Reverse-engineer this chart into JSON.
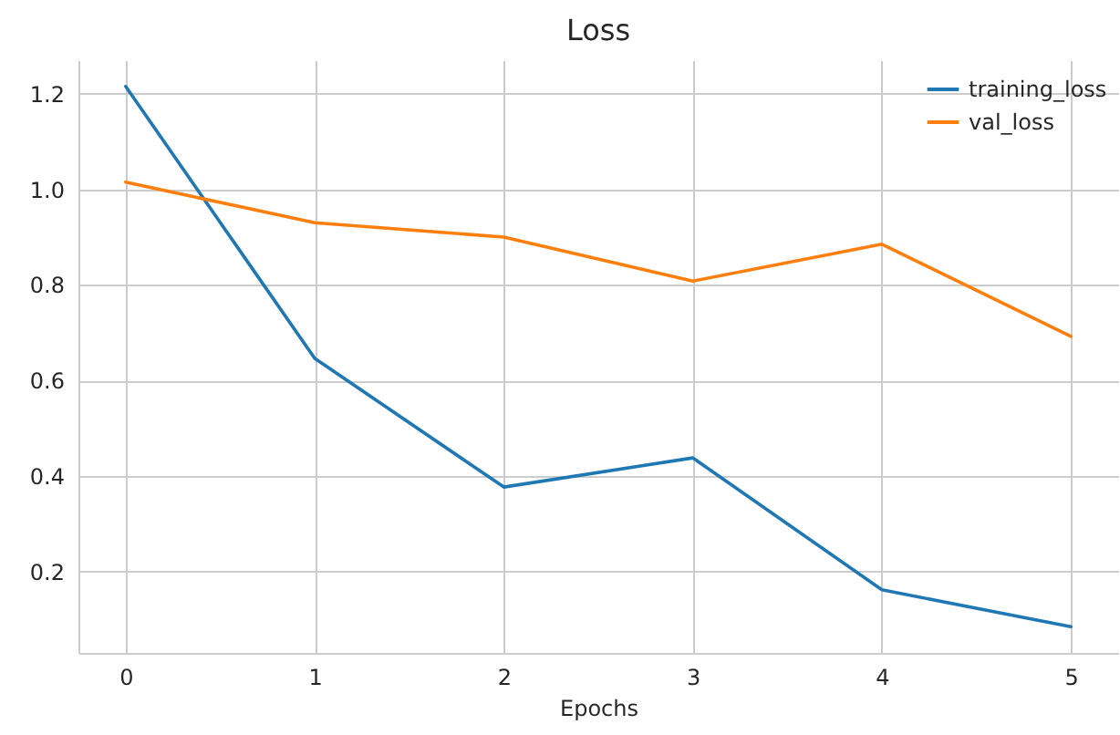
{
  "chart_data": {
    "type": "line",
    "title": "Loss",
    "xlabel": "Epochs",
    "x": [
      0,
      1,
      2,
      3,
      4,
      5
    ],
    "series": [
      {
        "name": "training_loss",
        "color": "#1f77b4",
        "values": [
          1.215,
          0.646,
          0.377,
          0.438,
          0.162,
          0.085
        ]
      },
      {
        "name": "val_loss",
        "color": "#ff7f0e",
        "values": [
          1.015,
          0.93,
          0.9,
          0.808,
          0.885,
          0.692
        ]
      }
    ],
    "xlim": [
      -0.25,
      5.25
    ],
    "xticks": [
      0,
      1,
      2,
      3,
      4,
      5
    ],
    "ylim": [
      0.03,
      1.27
    ],
    "yticks": [
      0.2,
      0.4,
      0.6,
      0.8,
      {
        "value": 1,
        "label": "1.0"
      },
      1.2
    ],
    "grid": true,
    "legend": "top right",
    "marker": "none",
    "line_style": "solid"
  }
}
